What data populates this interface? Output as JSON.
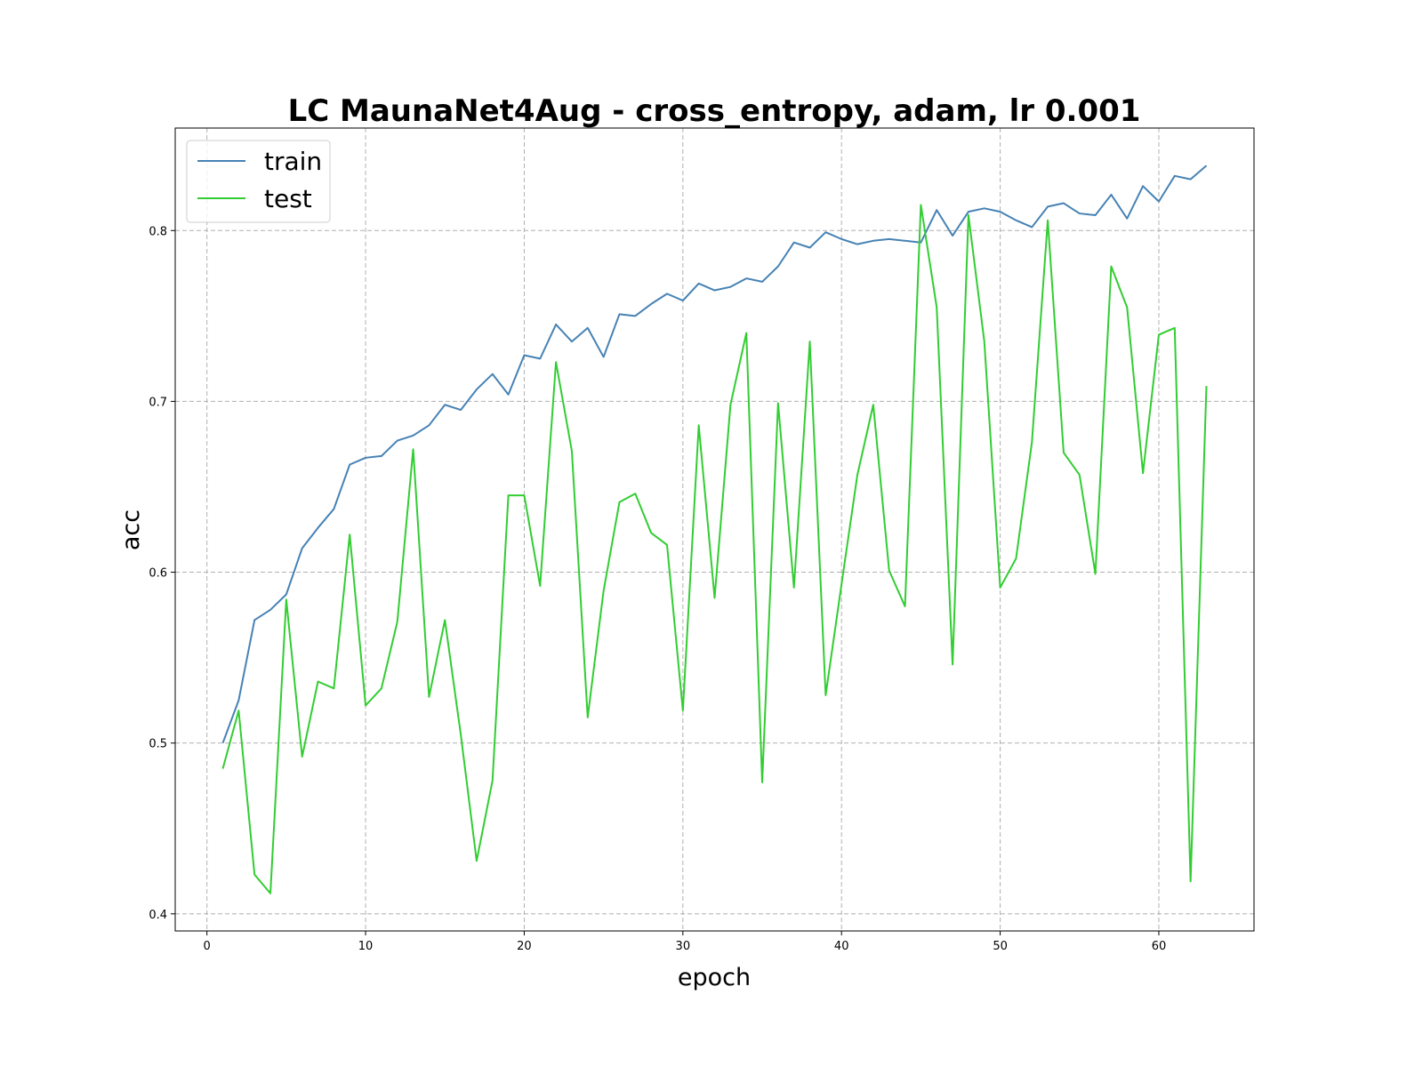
{
  "chart_data": {
    "type": "line",
    "title": "LC MaunaNet4Aug - cross_entropy, adam, lr 0.001",
    "xlabel": "epoch",
    "ylabel": "acc",
    "xlim": [
      -2,
      66
    ],
    "ylim": [
      0.39,
      0.86
    ],
    "xticks": [
      0,
      10,
      20,
      30,
      40,
      50,
      60
    ],
    "yticks": [
      0.4,
      0.5,
      0.6,
      0.7,
      0.8
    ],
    "grid": true,
    "legend_position": "upper-left",
    "x": [
      1,
      2,
      3,
      4,
      5,
      6,
      7,
      8,
      9,
      10,
      11,
      12,
      13,
      14,
      15,
      16,
      17,
      18,
      19,
      20,
      21,
      22,
      23,
      24,
      25,
      26,
      27,
      28,
      29,
      30,
      31,
      32,
      33,
      34,
      35,
      36,
      37,
      38,
      39,
      40,
      41,
      42,
      43,
      44,
      45,
      46,
      47,
      48,
      49,
      50,
      51,
      52,
      53,
      54,
      55,
      56,
      57,
      58,
      59,
      60,
      61,
      62,
      63
    ],
    "series": [
      {
        "name": "train",
        "color": "#4682b4",
        "values": [
          0.5,
          0.525,
          0.572,
          0.578,
          0.587,
          0.614,
          0.626,
          0.637,
          0.663,
          0.667,
          0.668,
          0.677,
          0.68,
          0.686,
          0.698,
          0.695,
          0.707,
          0.716,
          0.704,
          0.727,
          0.725,
          0.745,
          0.735,
          0.743,
          0.726,
          0.751,
          0.75,
          0.757,
          0.763,
          0.759,
          0.769,
          0.765,
          0.767,
          0.772,
          0.77,
          0.779,
          0.793,
          0.79,
          0.799,
          0.795,
          0.792,
          0.794,
          0.795,
          0.794,
          0.793,
          0.812,
          0.797,
          0.811,
          0.813,
          0.811,
          0.806,
          0.802,
          0.814,
          0.816,
          0.81,
          0.809,
          0.821,
          0.807,
          0.826,
          0.817,
          0.832,
          0.83,
          0.838
        ]
      },
      {
        "name": "test",
        "color": "#32cd32",
        "values": [
          0.485,
          0.519,
          0.423,
          0.412,
          0.584,
          0.492,
          0.536,
          0.532,
          0.622,
          0.522,
          0.532,
          0.571,
          0.672,
          0.527,
          0.572,
          0.505,
          0.431,
          0.478,
          0.645,
          0.645,
          0.592,
          0.723,
          0.671,
          0.515,
          0.589,
          0.641,
          0.646,
          0.623,
          0.616,
          0.519,
          0.686,
          0.585,
          0.698,
          0.74,
          0.477,
          0.699,
          0.591,
          0.735,
          0.528,
          0.593,
          0.657,
          0.698,
          0.601,
          0.58,
          0.815,
          0.755,
          0.546,
          0.809,
          0.735,
          0.591,
          0.608,
          0.676,
          0.806,
          0.67,
          0.657,
          0.599,
          0.779,
          0.755,
          0.658,
          0.739,
          0.743,
          0.419,
          0.709
        ]
      }
    ]
  }
}
